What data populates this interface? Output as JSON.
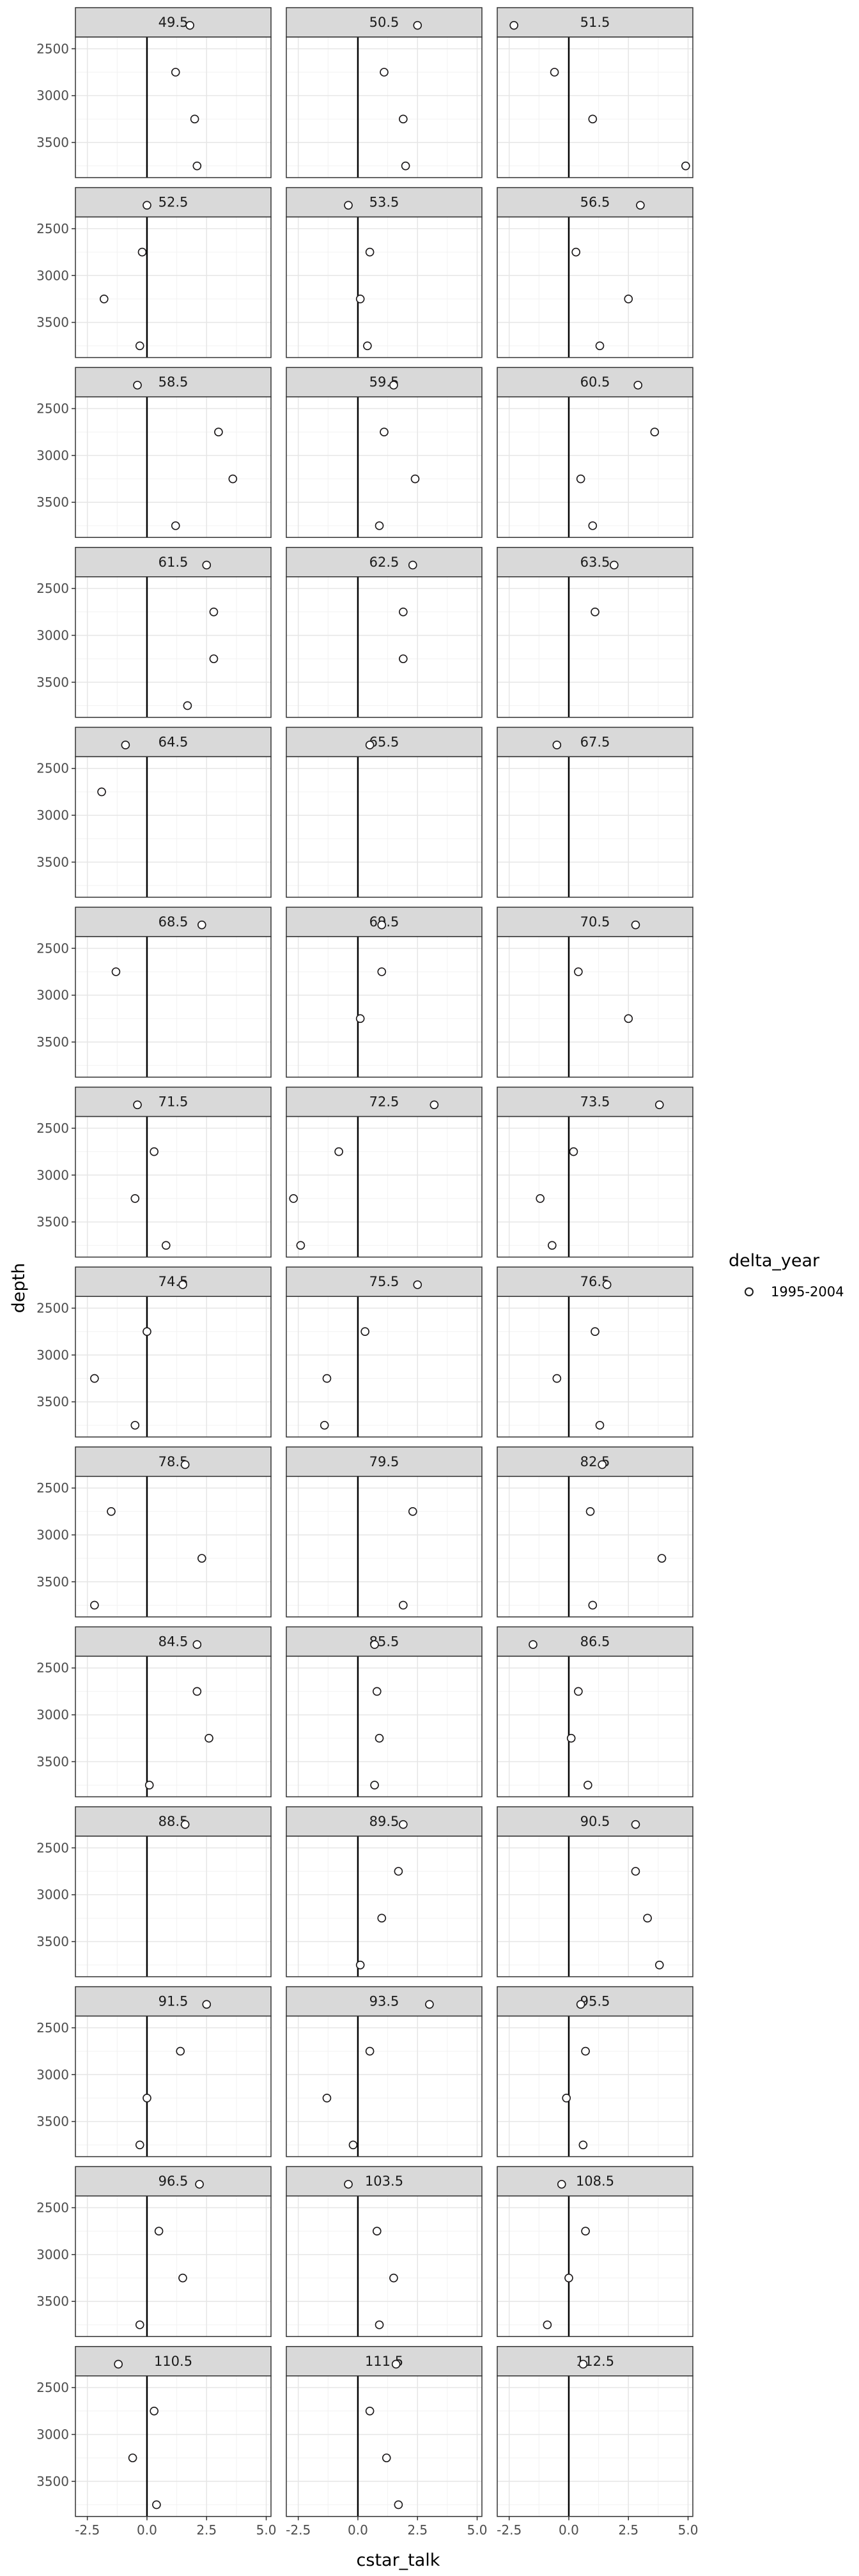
{
  "chart_data": {
    "type": "scatter",
    "xlabel": "cstar_talk",
    "ylabel": "depth",
    "xlim": [
      -3,
      5.2
    ],
    "ylim": [
      2375,
      3875
    ],
    "y_reversed": true,
    "x_ticks": [
      -2.5,
      0.0,
      2.5,
      5.0
    ],
    "x_tick_labels": [
      "-2.5",
      "0.0",
      "2.5",
      "5.0"
    ],
    "y_ticks": [
      2500,
      3000,
      3500
    ],
    "y_tick_labels": [
      "2500",
      "3000",
      "3500"
    ],
    "vline_x": 0,
    "grid": true,
    "legend": {
      "title": "delta_year",
      "entries": [
        {
          "label": "1995-2004",
          "color": "#c2185b"
        }
      ],
      "placement": "right"
    },
    "facets": [
      {
        "label": "49.5",
        "points": [
          [
            1.8,
            2250
          ],
          [
            1.2,
            2750
          ],
          [
            2.0,
            3250
          ],
          [
            2.1,
            3750
          ]
        ]
      },
      {
        "label": "50.5",
        "points": [
          [
            2.5,
            2250
          ],
          [
            1.1,
            2750
          ],
          [
            1.9,
            3250
          ],
          [
            2.0,
            3750
          ]
        ]
      },
      {
        "label": "51.5",
        "points": [
          [
            -2.3,
            2250
          ],
          [
            -0.6,
            2750
          ],
          [
            1.0,
            3250
          ],
          [
            4.9,
            3750
          ]
        ]
      },
      {
        "label": "52.5",
        "points": [
          [
            0.0,
            2250
          ],
          [
            -0.2,
            2750
          ],
          [
            -1.8,
            3250
          ],
          [
            -0.3,
            3750
          ]
        ]
      },
      {
        "label": "53.5",
        "points": [
          [
            -0.4,
            2250
          ],
          [
            0.5,
            2750
          ],
          [
            0.1,
            3250
          ],
          [
            0.4,
            3750
          ]
        ]
      },
      {
        "label": "56.5",
        "points": [
          [
            3.0,
            2250
          ],
          [
            0.3,
            2750
          ],
          [
            2.5,
            3250
          ],
          [
            1.3,
            3750
          ]
        ]
      },
      {
        "label": "58.5",
        "points": [
          [
            -0.4,
            2250
          ],
          [
            3.0,
            2750
          ],
          [
            3.6,
            3250
          ],
          [
            1.2,
            3750
          ]
        ]
      },
      {
        "label": "59.5",
        "points": [
          [
            1.5,
            2250
          ],
          [
            1.1,
            2750
          ],
          [
            2.4,
            3250
          ],
          [
            0.9,
            3750
          ]
        ]
      },
      {
        "label": "60.5",
        "points": [
          [
            2.9,
            2250
          ],
          [
            3.6,
            2750
          ],
          [
            0.5,
            3250
          ],
          [
            1.0,
            3750
          ]
        ]
      },
      {
        "label": "61.5",
        "points": [
          [
            2.5,
            2250
          ],
          [
            2.8,
            2750
          ],
          [
            2.8,
            3250
          ],
          [
            1.7,
            3750
          ]
        ]
      },
      {
        "label": "62.5",
        "points": [
          [
            2.3,
            2250
          ],
          [
            1.9,
            2750
          ],
          [
            1.9,
            3250
          ]
        ]
      },
      {
        "label": "63.5",
        "points": [
          [
            1.9,
            2250
          ],
          [
            1.1,
            2750
          ]
        ]
      },
      {
        "label": "64.5",
        "points": [
          [
            -0.9,
            2250
          ],
          [
            -1.9,
            2750
          ]
        ]
      },
      {
        "label": "65.5",
        "points": [
          [
            0.5,
            2250
          ]
        ]
      },
      {
        "label": "67.5",
        "points": [
          [
            -0.5,
            2250
          ]
        ]
      },
      {
        "label": "68.5",
        "points": [
          [
            2.3,
            2250
          ],
          [
            -1.3,
            2750
          ]
        ]
      },
      {
        "label": "69.5",
        "points": [
          [
            1.0,
            2250
          ],
          [
            1.0,
            2750
          ],
          [
            0.1,
            3250
          ]
        ]
      },
      {
        "label": "70.5",
        "points": [
          [
            2.8,
            2250
          ],
          [
            0.4,
            2750
          ],
          [
            2.5,
            3250
          ]
        ]
      },
      {
        "label": "71.5",
        "points": [
          [
            -0.4,
            2250
          ],
          [
            0.3,
            2750
          ],
          [
            -0.5,
            3250
          ],
          [
            0.8,
            3750
          ]
        ]
      },
      {
        "label": "72.5",
        "points": [
          [
            3.2,
            2250
          ],
          [
            -0.8,
            2750
          ],
          [
            -2.7,
            3250
          ],
          [
            -2.4,
            3750
          ]
        ]
      },
      {
        "label": "73.5",
        "points": [
          [
            3.8,
            2250
          ],
          [
            0.2,
            2750
          ],
          [
            -1.2,
            3250
          ],
          [
            -0.7,
            3750
          ]
        ]
      },
      {
        "label": "74.5",
        "points": [
          [
            1.5,
            2250
          ],
          [
            0.0,
            2750
          ],
          [
            -2.2,
            3250
          ],
          [
            -0.5,
            3750
          ]
        ]
      },
      {
        "label": "75.5",
        "points": [
          [
            2.5,
            2250
          ],
          [
            0.3,
            2750
          ],
          [
            -1.3,
            3250
          ],
          [
            -1.4,
            3750
          ]
        ]
      },
      {
        "label": "76.5",
        "points": [
          [
            1.6,
            2250
          ],
          [
            1.1,
            2750
          ],
          [
            -0.5,
            3250
          ],
          [
            1.3,
            3750
          ]
        ]
      },
      {
        "label": "78.5",
        "points": [
          [
            1.6,
            2250
          ],
          [
            -1.5,
            2750
          ],
          [
            2.3,
            3250
          ],
          [
            -2.2,
            3750
          ]
        ]
      },
      {
        "label": "79.5",
        "points": [
          [
            2.3,
            2750
          ],
          [
            1.9,
            3750
          ]
        ]
      },
      {
        "label": "82.5",
        "points": [
          [
            1.4,
            2250
          ],
          [
            0.9,
            2750
          ],
          [
            3.9,
            3250
          ],
          [
            1.0,
            3750
          ]
        ]
      },
      {
        "label": "84.5",
        "points": [
          [
            2.1,
            2250
          ],
          [
            2.1,
            2750
          ],
          [
            2.6,
            3250
          ],
          [
            0.1,
            3750
          ]
        ]
      },
      {
        "label": "85.5",
        "points": [
          [
            0.7,
            2250
          ],
          [
            0.8,
            2750
          ],
          [
            0.9,
            3250
          ],
          [
            0.7,
            3750
          ]
        ]
      },
      {
        "label": "86.5",
        "points": [
          [
            -1.5,
            2250
          ],
          [
            0.4,
            2750
          ],
          [
            0.1,
            3250
          ],
          [
            0.8,
            3750
          ]
        ]
      },
      {
        "label": "88.5",
        "points": [
          [
            1.6,
            2250
          ]
        ]
      },
      {
        "label": "89.5",
        "points": [
          [
            1.9,
            2250
          ],
          [
            1.7,
            2750
          ],
          [
            1.0,
            3250
          ],
          [
            0.1,
            3750
          ]
        ]
      },
      {
        "label": "90.5",
        "points": [
          [
            2.8,
            2250
          ],
          [
            2.8,
            2750
          ],
          [
            3.3,
            3250
          ],
          [
            3.8,
            3750
          ]
        ]
      },
      {
        "label": "91.5",
        "points": [
          [
            2.5,
            2250
          ],
          [
            1.4,
            2750
          ],
          [
            0.0,
            3250
          ],
          [
            -0.3,
            3750
          ]
        ]
      },
      {
        "label": "93.5",
        "points": [
          [
            3.0,
            2250
          ],
          [
            0.5,
            2750
          ],
          [
            -1.3,
            3250
          ],
          [
            -0.2,
            3750
          ]
        ]
      },
      {
        "label": "95.5",
        "points": [
          [
            0.5,
            2250
          ],
          [
            0.7,
            2750
          ],
          [
            -0.1,
            3250
          ],
          [
            0.6,
            3750
          ]
        ]
      },
      {
        "label": "96.5",
        "points": [
          [
            2.2,
            2250
          ],
          [
            0.5,
            2750
          ],
          [
            1.5,
            3250
          ],
          [
            -0.3,
            3750
          ]
        ]
      },
      {
        "label": "103.5",
        "points": [
          [
            -0.4,
            2250
          ],
          [
            0.8,
            2750
          ],
          [
            1.5,
            3250
          ],
          [
            0.9,
            3750
          ]
        ]
      },
      {
        "label": "108.5",
        "points": [
          [
            -0.3,
            2250
          ],
          [
            0.7,
            2750
          ],
          [
            0.0,
            3250
          ],
          [
            -0.9,
            3750
          ]
        ]
      },
      {
        "label": "110.5",
        "points": [
          [
            -1.2,
            2250
          ],
          [
            0.3,
            2750
          ],
          [
            -0.6,
            3250
          ],
          [
            0.4,
            3750
          ]
        ]
      },
      {
        "label": "111.5",
        "points": [
          [
            1.6,
            2250
          ],
          [
            0.5,
            2750
          ],
          [
            1.2,
            3250
          ],
          [
            1.7,
            3750
          ]
        ]
      },
      {
        "label": "112.5",
        "points": [
          [
            0.6,
            2250
          ]
        ]
      }
    ]
  }
}
